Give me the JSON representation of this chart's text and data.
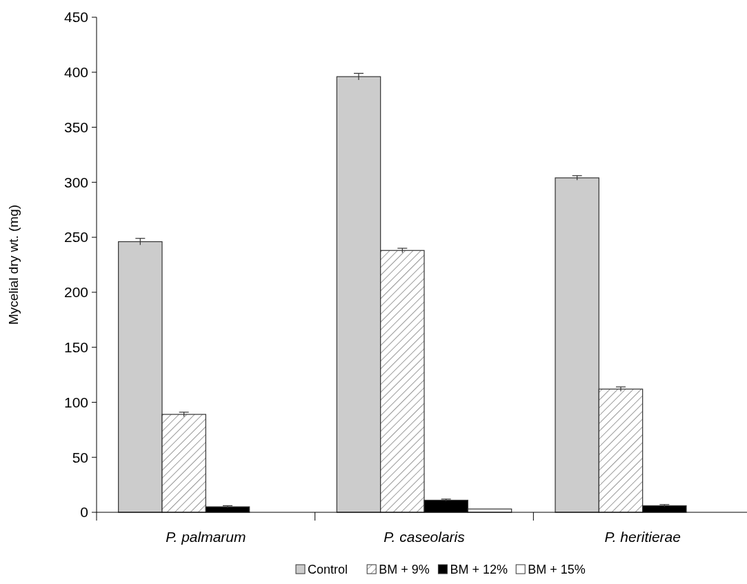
{
  "chart_data": {
    "type": "bar",
    "ylabel": "Mycelial dry wt. (mg)",
    "categories": [
      "P. palmarum",
      "P. caseolaris",
      "P. heritierae"
    ],
    "series": [
      {
        "name": "Control",
        "color": "#cccccc",
        "values": [
          246,
          396,
          304
        ],
        "errors": [
          3,
          3,
          2
        ]
      },
      {
        "name": "BM + 9%",
        "color": "#333333",
        "values": [
          89,
          238,
          112
        ],
        "errors": [
          2,
          2,
          2
        ]
      },
      {
        "name": "BM + 12%",
        "color": "#000000",
        "values": [
          5,
          11,
          6
        ],
        "errors": [
          1,
          1,
          1
        ]
      },
      {
        "name": "BM + 15%",
        "color": "#ffffff",
        "values": [
          0,
          3,
          0
        ],
        "errors": [
          null,
          null,
          null
        ]
      }
    ],
    "ylim": [
      0,
      450
    ],
    "yticks": [
      0,
      50,
      100,
      150,
      200,
      250,
      300,
      350,
      400,
      450
    ],
    "legend": "bottom",
    "grid": false
  }
}
